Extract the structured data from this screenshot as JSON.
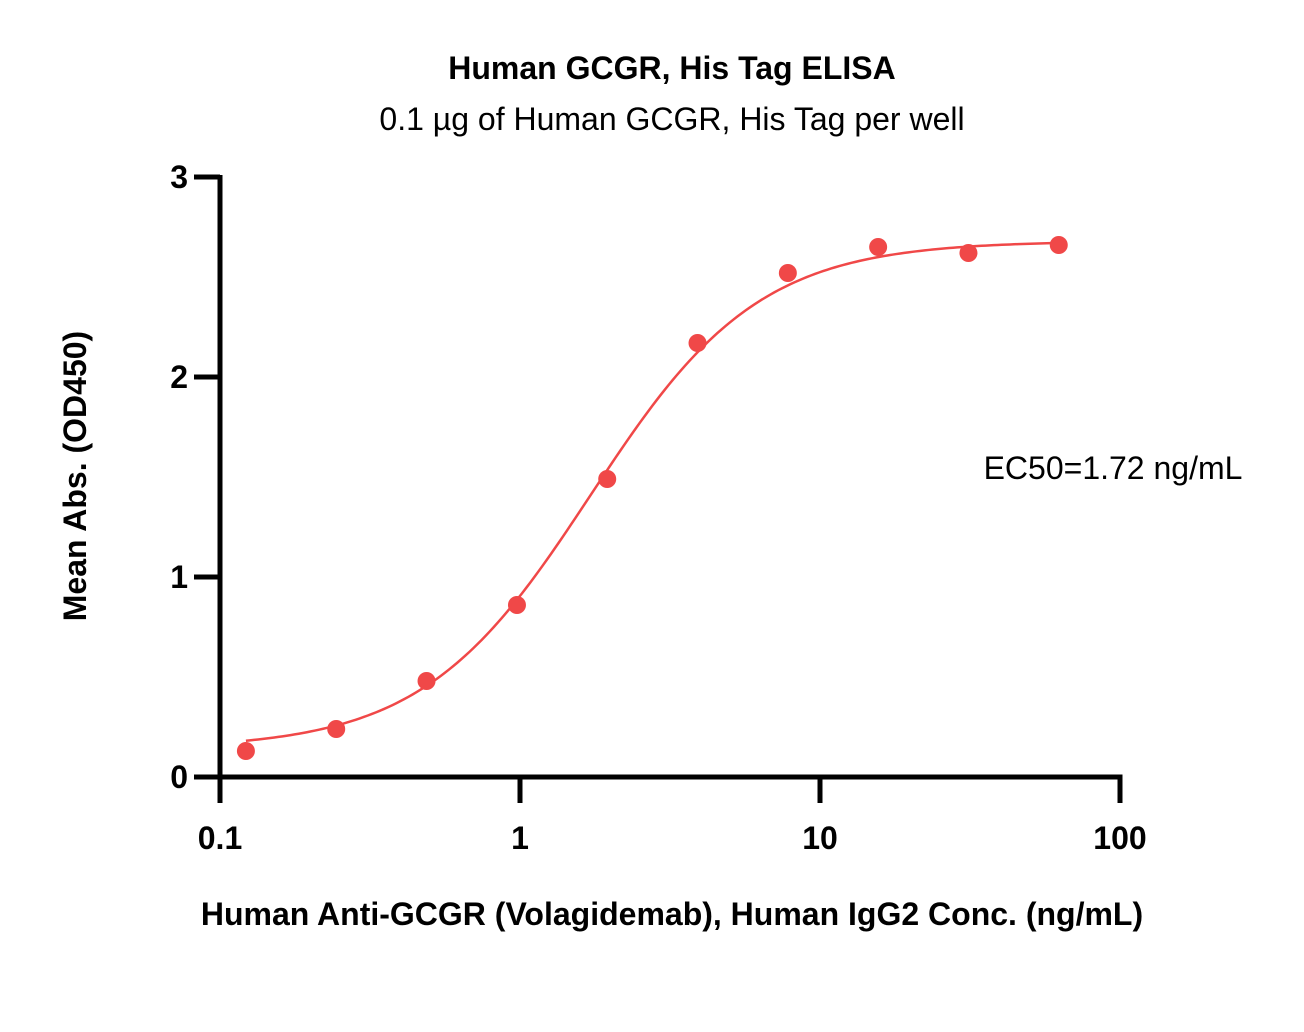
{
  "chart_data": {
    "type": "scatter",
    "title": "Human GCGR, His Tag ELISA",
    "subtitle": "0.1 µg of Human GCGR, His Tag per well",
    "xlabel": "Human Anti-GCGR (Volagidemab), Human IgG2 Conc. (ng/mL)",
    "ylabel": "Mean Abs. (OD450)",
    "xscale": "log",
    "xlim": [
      0.1,
      100
    ],
    "ylim": [
      0,
      3
    ],
    "xticks": [
      "0.1",
      "1",
      "10",
      "100"
    ],
    "yticks": [
      "0",
      "1",
      "2",
      "3"
    ],
    "grid": false,
    "legend": "none",
    "color": "#f04848",
    "annotation": "EC50=1.72 ng/mL",
    "series": [
      {
        "x": [
          0.122,
          0.244,
          0.488,
          0.977,
          1.953,
          3.906,
          7.813,
          15.625,
          31.25,
          62.5
        ],
        "y": [
          0.13,
          0.24,
          0.48,
          0.86,
          1.49,
          2.17,
          2.52,
          2.65,
          2.62,
          2.66
        ]
      }
    ],
    "fit": {
      "model": "4PL",
      "bottom": 0.14,
      "top": 2.68,
      "ec50": 1.72,
      "hill": 1.55
    }
  }
}
